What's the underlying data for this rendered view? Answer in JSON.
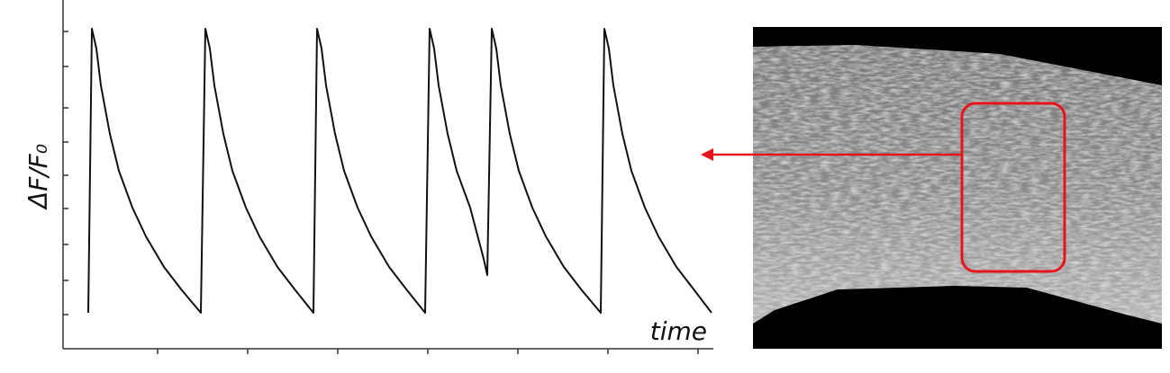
{
  "chart_data": {
    "type": "line",
    "x_label": "time",
    "y_label": "ΔF/F₀",
    "xlim": [
      0,
      72
    ],
    "ylim": [
      0,
      3.88
    ],
    "series": [
      {
        "color": "#111111",
        "x": [
          2.8,
          3.2,
          3.7,
          4.2,
          5.2,
          6.2,
          7.7,
          9.2,
          11.2,
          13.2,
          15.3,
          15.8,
          16.3,
          16.8,
          17.8,
          18.8,
          20.3,
          21.8,
          23.8,
          25.8,
          27.8,
          28.2,
          28.7,
          29.2,
          30.2,
          31.2,
          32.7,
          34.2,
          36.2,
          38.2,
          40.2,
          40.7,
          41.2,
          41.7,
          42.7,
          43.7,
          45.2,
          46.7,
          47.1,
          47.6,
          48.1,
          48.6,
          49.6,
          50.6,
          52.1,
          53.6,
          55.6,
          57.6,
          59.7,
          60.1,
          60.6,
          61.1,
          62.1,
          63.1,
          64.6,
          66.1,
          68.1,
          70.1,
          72.0
        ],
        "values": [
          0.4,
          3.56,
          3.34,
          2.93,
          2.39,
          1.98,
          1.57,
          1.25,
          0.91,
          0.65,
          0.4,
          3.56,
          3.34,
          2.93,
          2.39,
          1.98,
          1.57,
          1.25,
          0.91,
          0.65,
          0.4,
          3.56,
          3.34,
          2.93,
          2.39,
          1.98,
          1.57,
          1.25,
          0.91,
          0.65,
          0.4,
          3.56,
          3.34,
          2.93,
          2.39,
          1.98,
          1.57,
          1.0,
          0.82,
          3.56,
          3.34,
          2.93,
          2.39,
          1.98,
          1.57,
          1.25,
          0.91,
          0.65,
          0.4,
          3.56,
          3.34,
          2.93,
          2.39,
          1.98,
          1.57,
          1.25,
          0.91,
          0.65,
          0.4
        ]
      }
    ]
  }
}
